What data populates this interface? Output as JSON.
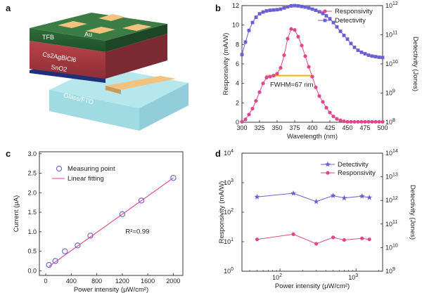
{
  "panels": {
    "a": {
      "label": "a",
      "layers": [
        "TFB",
        "Au",
        "Cs2AgBiCl6",
        "SnO2",
        "Glass/FTO"
      ]
    },
    "b": {
      "label": "b"
    },
    "c": {
      "label": "c"
    },
    "d": {
      "label": "d"
    }
  },
  "chart_data": [
    {
      "id": "b",
      "type": "line",
      "xlabel": "Wavelength (nm)",
      "ylabel": "Responsivity (mA/W)",
      "ylabel_right": "Detectivity (Jones)",
      "xlim": [
        300,
        500
      ],
      "ylim": [
        0,
        12
      ],
      "y2lim_log10": [
        8,
        12
      ],
      "xticks": [
        300,
        325,
        350,
        375,
        400,
        425,
        450,
        475,
        500
      ],
      "yticks": [
        0,
        2,
        4,
        6,
        8,
        10,
        12
      ],
      "y2ticks": [
        "10^8",
        "10^9",
        "10^10",
        "10^11",
        "10^12"
      ],
      "legend_position": "top-right",
      "annotation": "FWHM=67 nm",
      "fwhm_range": [
        334,
        401
      ],
      "fwhm_level": 4.8,
      "series": [
        {
          "name": "Responsivity",
          "axis": "left",
          "color": "#e0468c",
          "marker": "circle",
          "x": [
            300,
            305,
            310,
            315,
            320,
            325,
            330,
            335,
            340,
            345,
            350,
            355,
            360,
            365,
            370,
            375,
            380,
            385,
            390,
            395,
            400,
            405,
            410,
            415,
            420,
            425,
            430,
            435,
            440,
            445,
            450,
            455,
            460,
            465,
            470,
            475,
            480,
            485,
            490,
            495,
            500
          ],
          "y": [
            0.05,
            0.3,
            0.8,
            1.4,
            2.2,
            3.1,
            4.0,
            4.6,
            4.7,
            4.8,
            5.0,
            5.6,
            6.9,
            8.6,
            9.6,
            9.5,
            8.8,
            7.9,
            6.8,
            5.7,
            4.7,
            3.6,
            2.7,
            2.1,
            1.5,
            1.0,
            0.6,
            0.35,
            0.2,
            0.1,
            0.05,
            0.05,
            0.05,
            0.05,
            0.05,
            0.05,
            0.05,
            0.05,
            0.05,
            0.05,
            0.05
          ]
        },
        {
          "name": "Detectivity",
          "axis": "right",
          "color": "#6a5fd1",
          "marker": "square",
          "x": [
            300,
            305,
            310,
            315,
            320,
            325,
            330,
            335,
            340,
            345,
            350,
            355,
            360,
            365,
            370,
            375,
            380,
            385,
            390,
            395,
            400,
            405,
            410,
            415,
            420,
            425,
            430,
            435,
            440,
            445,
            450,
            455,
            460,
            465,
            470,
            475,
            480,
            485,
            490,
            495,
            500
          ],
          "log10_y": [
            10.32,
            10.75,
            11.15,
            11.42,
            11.6,
            11.72,
            11.78,
            11.82,
            11.84,
            11.85,
            11.86,
            11.88,
            11.92,
            11.96,
            11.99,
            12.0,
            11.99,
            11.97,
            11.95,
            11.92,
            11.88,
            11.84,
            11.79,
            11.73,
            11.65,
            11.55,
            11.42,
            11.27,
            11.12,
            10.98,
            10.85,
            10.7,
            10.57,
            10.47,
            10.4,
            10.35,
            10.3,
            10.27,
            10.25,
            10.23,
            10.22
          ]
        }
      ]
    },
    {
      "id": "c",
      "type": "scatter",
      "xlabel": "Power intensity (μW/cm²)",
      "ylabel": "Current (μA)",
      "xlim": [
        -100,
        2150
      ],
      "ylim": [
        -0.12,
        3.05
      ],
      "xticks": [
        0,
        400,
        800,
        1200,
        1600,
        2000
      ],
      "yticks": [
        0.0,
        0.5,
        1.0,
        1.5,
        2.0,
        2.5,
        3.0
      ],
      "legend_position": "top-left",
      "annotation": "R²=0.99",
      "series": [
        {
          "name": "Measuring point",
          "color": "#6a5fd1",
          "marker": "open-circle",
          "x": [
            50,
            150,
            300,
            500,
            700,
            1200,
            1500,
            2000
          ],
          "y": [
            0.15,
            0.25,
            0.5,
            0.65,
            0.9,
            1.45,
            1.8,
            2.38
          ]
        },
        {
          "name": "Linear fitting",
          "color": "#e0468c",
          "line": true,
          "x": [
            50,
            2000
          ],
          "y": [
            0.11,
            2.38
          ]
        }
      ]
    },
    {
      "id": "d",
      "type": "line",
      "xscale": "log",
      "xlabel": "Power intensity (μW/cm²)",
      "ylabel": "Responsivity (mA/W)",
      "ylabel_right": "Detectivity (Jones)",
      "xlim_log10": [
        1.5,
        3.35
      ],
      "ylim_log10": [
        0,
        4
      ],
      "y2lim_log10": [
        9,
        14
      ],
      "xticks": [
        "10^2",
        "10^3"
      ],
      "yticks": [
        "10^0",
        "10^1",
        "10^2",
        "10^3",
        "10^4"
      ],
      "y2ticks": [
        "10^9",
        "10^10",
        "10^11",
        "10^12",
        "10^13",
        "10^14"
      ],
      "legend_position": "top-right",
      "series": [
        {
          "name": "Detectivity",
          "axis": "right",
          "color": "#6a5fd1",
          "marker": "star",
          "x": [
            50,
            150,
            300,
            500,
            700,
            1200,
            1500
          ],
          "log10_y": [
            12.15,
            12.3,
            11.95,
            12.2,
            12.1,
            12.18,
            12.12
          ]
        },
        {
          "name": "Responsivity",
          "axis": "left",
          "color": "#e0468c",
          "marker": "circle",
          "x": [
            50,
            150,
            300,
            500,
            700,
            1200,
            1500
          ],
          "y": [
            12,
            18,
            8.5,
            14,
            11.5,
            13,
            12
          ]
        }
      ]
    }
  ]
}
